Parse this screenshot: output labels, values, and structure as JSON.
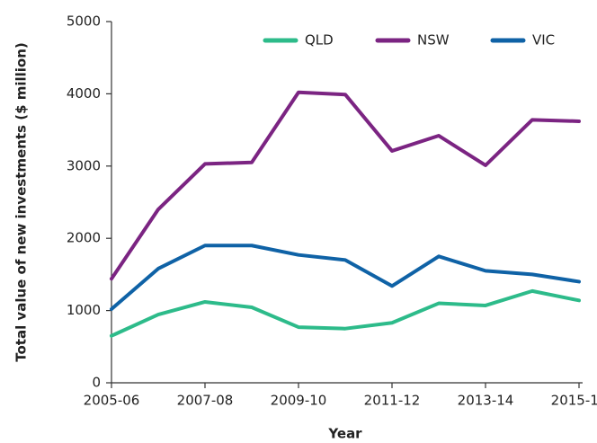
{
  "chart_data": {
    "type": "line",
    "x_label": "Year",
    "y_label": "Total value of new investments ($ million)",
    "categories": [
      "2005-06",
      null,
      "2007-08",
      null,
      "2009-10",
      null,
      "2011-12",
      null,
      "2013-14",
      null,
      "2015-16"
    ],
    "series": [
      {
        "name": "QLD",
        "color": "#2dbb8a",
        "values": [
          650,
          945,
          1120,
          1045,
          770,
          750,
          830,
          1100,
          1070,
          1270,
          1140
        ]
      },
      {
        "name": "NSW",
        "color": "#7b2482",
        "values": [
          1440,
          2400,
          3030,
          3050,
          4020,
          3990,
          3210,
          3420,
          3010,
          3640,
          3620
        ]
      },
      {
        "name": "VIC",
        "color": "#0f62a6",
        "values": [
          1020,
          1580,
          1900,
          1900,
          1770,
          1700,
          1340,
          1750,
          1550,
          1500,
          1400
        ]
      }
    ],
    "ylim": [
      0,
      5000
    ],
    "yticks": [
      0,
      1000,
      2000,
      3000,
      4000,
      5000
    ],
    "grid": false,
    "legend": "top-right"
  }
}
